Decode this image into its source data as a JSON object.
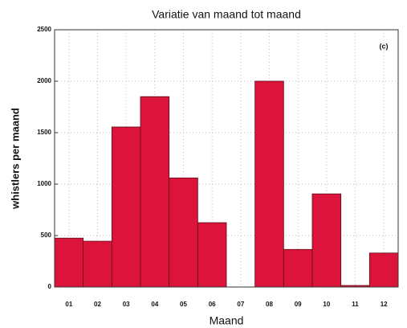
{
  "chart_data": {
    "type": "bar",
    "title": "Variatie van maand tot maand",
    "xlabel": "Maand",
    "ylabel": "whistlers per maand",
    "annotation": "(c)",
    "categories": [
      "01",
      "02",
      "03",
      "04",
      "05",
      "06",
      "07",
      "08",
      "09",
      "10",
      "11",
      "12"
    ],
    "values": [
      475,
      445,
      1555,
      1850,
      1060,
      625,
      0,
      2000,
      365,
      905,
      15,
      330
    ],
    "color": "#dc143c",
    "ylim": [
      0,
      2500
    ],
    "yticks": [
      0,
      500,
      1000,
      1500,
      2000,
      2500
    ],
    "grid": true
  }
}
